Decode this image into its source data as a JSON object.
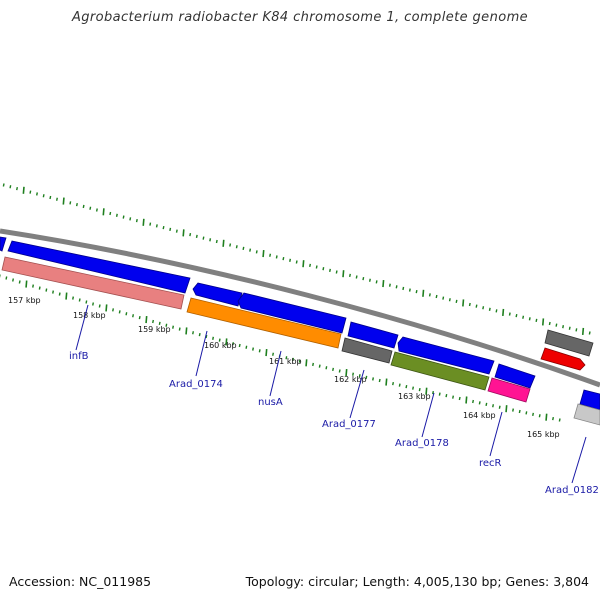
{
  "map": {
    "title": "Agrobacterium radiobacter K84 chromosome 1, complete genome",
    "footer": {
      "accession": "Accession: NC_011985",
      "stats": "Topology: circular; Length: 4,005,130 bp; Genes: 3,804"
    },
    "colors": {
      "background": "#ffffff",
      "backbone": "#808080",
      "forward_cds": "#0000ee",
      "tick": "#1e7f1e",
      "label": "#1a1aa6"
    },
    "ticks": {
      "outer_ring_start_kb": 156.5,
      "outer_ring_end_kb": 166.5,
      "inner_ring_start_kb": 156.5,
      "inner_ring_end_kb": 166.5
    },
    "kbp_labels": [
      "157 kbp",
      "158 kbp",
      "159 kbp",
      "160 kbp",
      "161 kbp",
      "162 kbp",
      "163 kbp",
      "164 kbp",
      "165 kbp"
    ],
    "features": [
      {
        "name": "infB",
        "color": "#e88080",
        "strand": "reverse-lane"
      },
      {
        "name": "Arad_0174",
        "color": "#ff8c00",
        "strand": "reverse-lane"
      },
      {
        "name": "nusA",
        "color": "#0000ee",
        "strand": "forward"
      },
      {
        "name": "Arad_0177",
        "color": "#666666",
        "strand": "reverse-lane"
      },
      {
        "name": "Arad_0178",
        "color": "#6b8e23",
        "strand": "reverse-lane"
      },
      {
        "name": "recR",
        "color": "#ff1493",
        "strand": "reverse-lane"
      },
      {
        "name": "Arad_0182",
        "color": "#c8c8c8",
        "strand": "reverse-lane"
      }
    ]
  }
}
